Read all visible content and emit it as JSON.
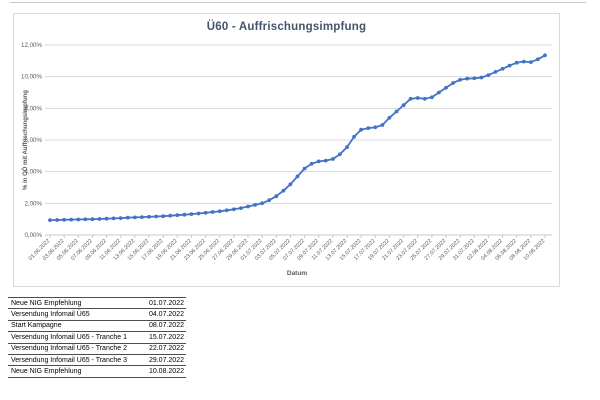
{
  "window": {
    "edge_line_color": "#c9c9c9"
  },
  "colors": {
    "series_line": "#4472c4",
    "marker": "#3d63ad",
    "gridline": "#d9d9d9",
    "axis_line": "#c8c8c8",
    "axis_text": "#595959",
    "title_text": "#44546a",
    "chart_border": "#d9d9d9",
    "table_line": "#4d4d4d",
    "table_text": "#000000"
  },
  "chart_data": {
    "type": "line",
    "title": "Ü60 - Auffrischungsimpfung",
    "xlabel": "Datum",
    "ylabel": "% in OÖ mit Auffrischungsimpfung",
    "ylim": [
      0,
      12
    ],
    "ytick_labels": [
      "0,00%",
      "2,00%",
      "4,00%",
      "6,00%",
      "8,00%",
      "10,00%",
      "12,00%"
    ],
    "grid": true,
    "legend": "none",
    "marker": "circle",
    "x_label_every": 2,
    "x": [
      "01.06.2022",
      "02.06.2022",
      "03.06.2022",
      "04.06.2022",
      "05.06.2022",
      "06.06.2022",
      "07.06.2022",
      "08.06.2022",
      "09.06.2022",
      "10.06.2022",
      "11.06.2022",
      "12.06.2022",
      "13.06.2022",
      "14.06.2022",
      "15.06.2022",
      "16.06.2022",
      "17.06.2022",
      "18.06.2022",
      "19.06.2022",
      "20.06.2022",
      "21.06.2022",
      "22.06.2022",
      "23.06.2022",
      "24.06.2022",
      "25.06.2022",
      "26.06.2022",
      "27.06.2022",
      "28.06.2022",
      "29.06.2022",
      "30.06.2022",
      "01.07.2022",
      "02.07.2022",
      "03.07.2022",
      "04.07.2022",
      "05.07.2022",
      "06.07.2022",
      "07.07.2022",
      "08.07.2022",
      "09.07.2022",
      "10.07.2022",
      "11.07.2022",
      "12.07.2022",
      "13.07.2022",
      "14.07.2022",
      "15.07.2022",
      "16.07.2022",
      "17.07.2022",
      "18.07.2022",
      "19.07.2022",
      "20.07.2022",
      "21.07.2022",
      "22.07.2022",
      "23.07.2022",
      "24.07.2022",
      "25.07.2022",
      "26.07.2022",
      "27.07.2022",
      "28.07.2022",
      "29.07.2022",
      "30.07.2022",
      "31.07.2022",
      "01.08.2022",
      "02.08.2022",
      "03.08.2022",
      "04.08.2022",
      "05.08.2022",
      "06.08.2022",
      "07.08.2022",
      "08.08.2022",
      "09.08.2022",
      "10.08.2022"
    ],
    "series": [
      {
        "name": "% in OÖ mit Auffrischungsimpfung",
        "values": [
          0.94,
          0.95,
          0.96,
          0.97,
          0.98,
          0.99,
          1.0,
          1.01,
          1.03,
          1.05,
          1.07,
          1.09,
          1.11,
          1.13,
          1.15,
          1.17,
          1.19,
          1.22,
          1.25,
          1.28,
          1.32,
          1.36,
          1.4,
          1.45,
          1.5,
          1.56,
          1.62,
          1.7,
          1.8,
          1.9,
          2.0,
          2.2,
          2.45,
          2.8,
          3.2,
          3.7,
          4.2,
          4.5,
          4.65,
          4.7,
          4.8,
          5.1,
          5.55,
          6.2,
          6.65,
          6.75,
          6.8,
          6.95,
          7.4,
          7.8,
          8.2,
          8.6,
          8.65,
          8.6,
          8.7,
          9.0,
          9.3,
          9.6,
          9.8,
          9.88,
          9.9,
          9.95,
          10.1,
          10.3,
          10.5,
          10.7,
          10.88,
          10.95,
          10.92,
          11.1,
          11.35
        ]
      }
    ]
  },
  "events_table": {
    "rows": [
      {
        "label": "Neue NIG Empfehlung",
        "date": "01.07.2022"
      },
      {
        "label": "Versendung Infomail Ü65",
        "date": "04.07.2022"
      },
      {
        "label": "Start Kampagne",
        "date": "08.07.2022"
      },
      {
        "label": "Versendung Infomail U65 - Tranche 1",
        "date": "15.07.2022"
      },
      {
        "label": "Versendung Infomail U65 - Tranche 2",
        "date": "22.07.2022"
      },
      {
        "label": "Versendung Infomail U65 - Tranche 3",
        "date": "29.07.2022"
      },
      {
        "label": "Neue NIG Empfehlung",
        "date": "10.08.2022"
      }
    ]
  }
}
